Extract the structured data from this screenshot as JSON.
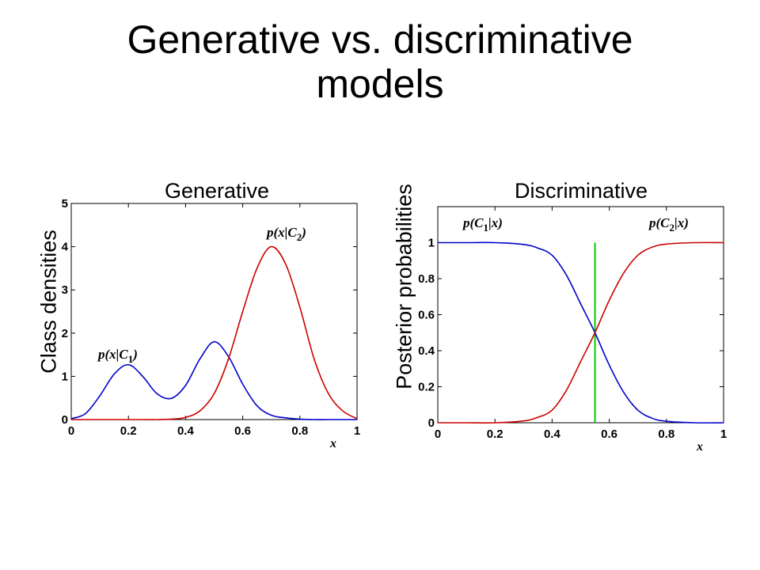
{
  "slide": {
    "title_line1": "Generative vs. discriminative",
    "title_line2": "models"
  },
  "colors": {
    "c1": "#0000cc",
    "c2": "#cc0000",
    "boundary": "#00cc00",
    "axis": "#000000"
  },
  "chart_data": [
    {
      "type": "line",
      "title": "Generative",
      "xlabel": "x",
      "ylabel": "Class densities",
      "xlim": [
        0,
        1
      ],
      "ylim": [
        0,
        5
      ],
      "xticks": [
        "0",
        "0.2",
        "0.4",
        "0.6",
        "0.8",
        "1"
      ],
      "yticks": [
        "0",
        "1",
        "2",
        "3",
        "4",
        "5"
      ],
      "series": [
        {
          "name": "p(x|C1)",
          "color": "#0000cc",
          "x": [
            0,
            0.05,
            0.1,
            0.15,
            0.2,
            0.25,
            0.3,
            0.35,
            0.4,
            0.45,
            0.5,
            0.55,
            0.6,
            0.65,
            0.7,
            0.75,
            0.8,
            0.85,
            0.9,
            0.95,
            1
          ],
          "y": [
            0.02,
            0.14,
            0.55,
            1.05,
            1.27,
            1.0,
            0.6,
            0.49,
            0.79,
            1.4,
            1.8,
            1.46,
            0.82,
            0.32,
            0.1,
            0.04,
            0.01,
            0,
            0,
            0,
            0
          ]
        },
        {
          "name": "p(x|C2)",
          "color": "#cc0000",
          "x": [
            0,
            0.05,
            0.1,
            0.15,
            0.2,
            0.25,
            0.3,
            0.35,
            0.4,
            0.45,
            0.5,
            0.55,
            0.6,
            0.65,
            0.7,
            0.75,
            0.8,
            0.85,
            0.9,
            0.95,
            1
          ],
          "y": [
            0,
            0,
            0,
            0,
            0,
            0,
            0,
            0.01,
            0.05,
            0.2,
            0.6,
            1.4,
            2.5,
            3.5,
            4.0,
            3.6,
            2.6,
            1.4,
            0.6,
            0.2,
            0.02
          ]
        }
      ],
      "annotations": [
        {
          "text": "p(x|C1)",
          "series": "C1"
        },
        {
          "text": "p(x|C2)",
          "series": "C2"
        }
      ]
    },
    {
      "type": "line",
      "title": "Discriminative",
      "xlabel": "x",
      "ylabel": "Posterior probabilities",
      "xlim": [
        0,
        1
      ],
      "ylim": [
        0,
        1.2
      ],
      "xticks": [
        "0",
        "0.2",
        "0.4",
        "0.6",
        "0.8",
        "1"
      ],
      "yticks": [
        "0",
        "0.2",
        "0.4",
        "0.6",
        "0.8",
        "1"
      ],
      "series": [
        {
          "name": "p(C1|x)",
          "color": "#0000cc",
          "x": [
            0,
            0.1,
            0.2,
            0.3,
            0.35,
            0.4,
            0.45,
            0.5,
            0.55,
            0.6,
            0.65,
            0.7,
            0.75,
            0.8,
            0.9,
            1
          ],
          "y": [
            1,
            1,
            1,
            0.99,
            0.97,
            0.93,
            0.82,
            0.66,
            0.5,
            0.32,
            0.17,
            0.07,
            0.025,
            0.008,
            0,
            0
          ]
        },
        {
          "name": "p(C2|x)",
          "color": "#cc0000",
          "x": [
            0,
            0.1,
            0.2,
            0.3,
            0.35,
            0.4,
            0.45,
            0.5,
            0.55,
            0.6,
            0.65,
            0.7,
            0.75,
            0.8,
            0.9,
            1
          ],
          "y": [
            0,
            0,
            0,
            0.01,
            0.03,
            0.07,
            0.18,
            0.34,
            0.5,
            0.68,
            0.83,
            0.93,
            0.975,
            0.992,
            1,
            1
          ]
        }
      ],
      "decision_boundary_x": 0.55,
      "annotations": [
        {
          "text": "p(C1|x)",
          "series": "C1"
        },
        {
          "text": "p(C2|x)",
          "series": "C2"
        }
      ]
    }
  ]
}
